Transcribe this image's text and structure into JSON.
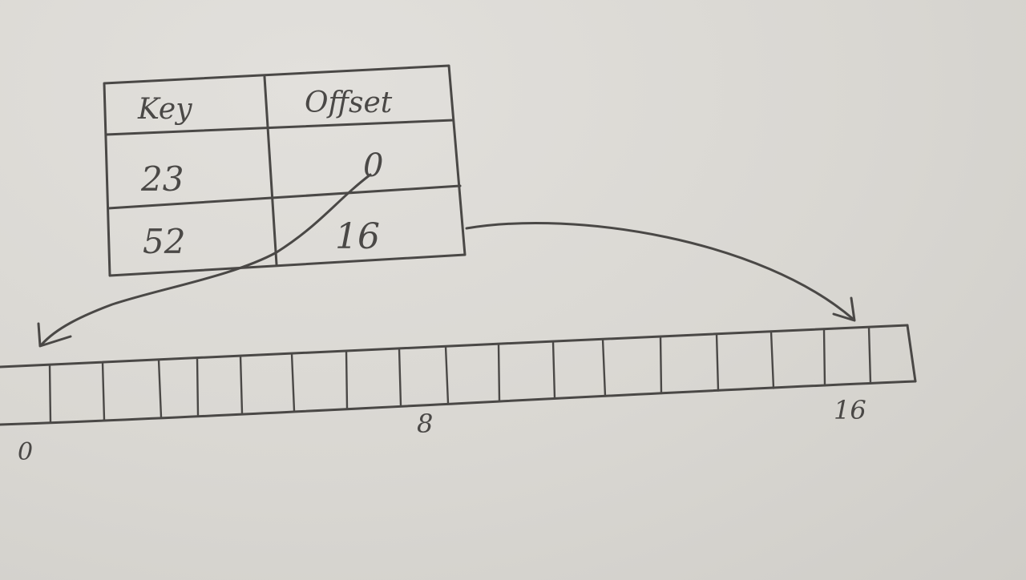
{
  "table": {
    "headers": [
      "Key",
      "Offset"
    ],
    "rows": [
      {
        "key": "23",
        "offset": "0"
      },
      {
        "key": "52",
        "offset": "16"
      }
    ]
  },
  "array": {
    "index_labels": [
      "0",
      "8",
      "16"
    ]
  },
  "colors": {
    "paper": "#d9d7d2",
    "ink": "#4a4846"
  }
}
